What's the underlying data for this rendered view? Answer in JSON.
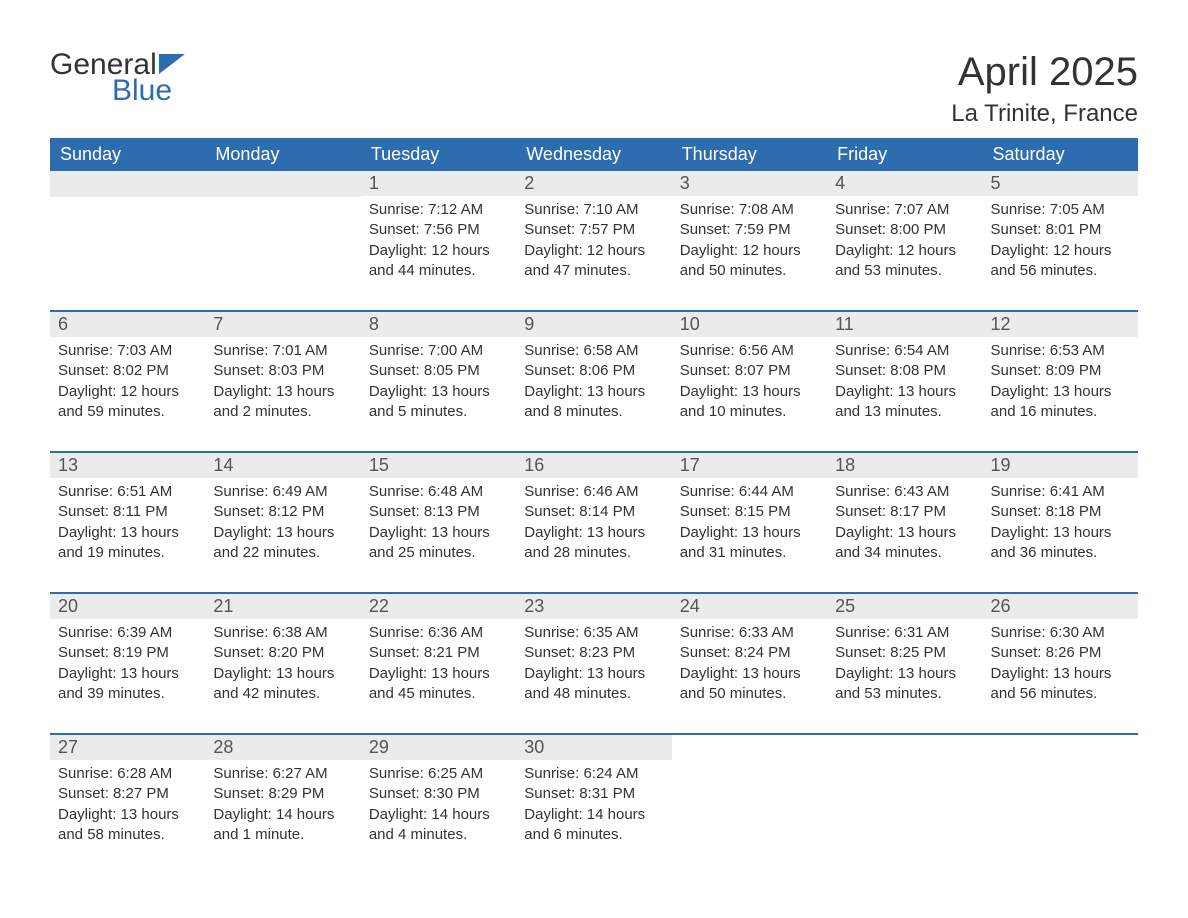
{
  "colors": {
    "accent": "#2e6cb0",
    "header_bg": "#2e6cb0",
    "header_text": "#ffffff",
    "daynum_bg": "#ebebeb",
    "text": "#333333",
    "background": "#ffffff"
  },
  "logo": {
    "line1": "General",
    "line2": "Blue"
  },
  "title": "April 2025",
  "location": "La Trinite, France",
  "weekdays": [
    "Sunday",
    "Monday",
    "Tuesday",
    "Wednesday",
    "Thursday",
    "Friday",
    "Saturday"
  ],
  "calendar": {
    "type": "table",
    "columns": 7,
    "rows": 5,
    "weeks": [
      [
        {
          "blank": true
        },
        {
          "blank": true
        },
        {
          "n": "1",
          "sunrise": "Sunrise: 7:12 AM",
          "sunset": "Sunset: 7:56 PM",
          "d1": "Daylight: 12 hours",
          "d2": "and 44 minutes."
        },
        {
          "n": "2",
          "sunrise": "Sunrise: 7:10 AM",
          "sunset": "Sunset: 7:57 PM",
          "d1": "Daylight: 12 hours",
          "d2": "and 47 minutes."
        },
        {
          "n": "3",
          "sunrise": "Sunrise: 7:08 AM",
          "sunset": "Sunset: 7:59 PM",
          "d1": "Daylight: 12 hours",
          "d2": "and 50 minutes."
        },
        {
          "n": "4",
          "sunrise": "Sunrise: 7:07 AM",
          "sunset": "Sunset: 8:00 PM",
          "d1": "Daylight: 12 hours",
          "d2": "and 53 minutes."
        },
        {
          "n": "5",
          "sunrise": "Sunrise: 7:05 AM",
          "sunset": "Sunset: 8:01 PM",
          "d1": "Daylight: 12 hours",
          "d2": "and 56 minutes."
        }
      ],
      [
        {
          "n": "6",
          "sunrise": "Sunrise: 7:03 AM",
          "sunset": "Sunset: 8:02 PM",
          "d1": "Daylight: 12 hours",
          "d2": "and 59 minutes."
        },
        {
          "n": "7",
          "sunrise": "Sunrise: 7:01 AM",
          "sunset": "Sunset: 8:03 PM",
          "d1": "Daylight: 13 hours",
          "d2": "and 2 minutes."
        },
        {
          "n": "8",
          "sunrise": "Sunrise: 7:00 AM",
          "sunset": "Sunset: 8:05 PM",
          "d1": "Daylight: 13 hours",
          "d2": "and 5 minutes."
        },
        {
          "n": "9",
          "sunrise": "Sunrise: 6:58 AM",
          "sunset": "Sunset: 8:06 PM",
          "d1": "Daylight: 13 hours",
          "d2": "and 8 minutes."
        },
        {
          "n": "10",
          "sunrise": "Sunrise: 6:56 AM",
          "sunset": "Sunset: 8:07 PM",
          "d1": "Daylight: 13 hours",
          "d2": "and 10 minutes."
        },
        {
          "n": "11",
          "sunrise": "Sunrise: 6:54 AM",
          "sunset": "Sunset: 8:08 PM",
          "d1": "Daylight: 13 hours",
          "d2": "and 13 minutes."
        },
        {
          "n": "12",
          "sunrise": "Sunrise: 6:53 AM",
          "sunset": "Sunset: 8:09 PM",
          "d1": "Daylight: 13 hours",
          "d2": "and 16 minutes."
        }
      ],
      [
        {
          "n": "13",
          "sunrise": "Sunrise: 6:51 AM",
          "sunset": "Sunset: 8:11 PM",
          "d1": "Daylight: 13 hours",
          "d2": "and 19 minutes."
        },
        {
          "n": "14",
          "sunrise": "Sunrise: 6:49 AM",
          "sunset": "Sunset: 8:12 PM",
          "d1": "Daylight: 13 hours",
          "d2": "and 22 minutes."
        },
        {
          "n": "15",
          "sunrise": "Sunrise: 6:48 AM",
          "sunset": "Sunset: 8:13 PM",
          "d1": "Daylight: 13 hours",
          "d2": "and 25 minutes."
        },
        {
          "n": "16",
          "sunrise": "Sunrise: 6:46 AM",
          "sunset": "Sunset: 8:14 PM",
          "d1": "Daylight: 13 hours",
          "d2": "and 28 minutes."
        },
        {
          "n": "17",
          "sunrise": "Sunrise: 6:44 AM",
          "sunset": "Sunset: 8:15 PM",
          "d1": "Daylight: 13 hours",
          "d2": "and 31 minutes."
        },
        {
          "n": "18",
          "sunrise": "Sunrise: 6:43 AM",
          "sunset": "Sunset: 8:17 PM",
          "d1": "Daylight: 13 hours",
          "d2": "and 34 minutes."
        },
        {
          "n": "19",
          "sunrise": "Sunrise: 6:41 AM",
          "sunset": "Sunset: 8:18 PM",
          "d1": "Daylight: 13 hours",
          "d2": "and 36 minutes."
        }
      ],
      [
        {
          "n": "20",
          "sunrise": "Sunrise: 6:39 AM",
          "sunset": "Sunset: 8:19 PM",
          "d1": "Daylight: 13 hours",
          "d2": "and 39 minutes."
        },
        {
          "n": "21",
          "sunrise": "Sunrise: 6:38 AM",
          "sunset": "Sunset: 8:20 PM",
          "d1": "Daylight: 13 hours",
          "d2": "and 42 minutes."
        },
        {
          "n": "22",
          "sunrise": "Sunrise: 6:36 AM",
          "sunset": "Sunset: 8:21 PM",
          "d1": "Daylight: 13 hours",
          "d2": "and 45 minutes."
        },
        {
          "n": "23",
          "sunrise": "Sunrise: 6:35 AM",
          "sunset": "Sunset: 8:23 PM",
          "d1": "Daylight: 13 hours",
          "d2": "and 48 minutes."
        },
        {
          "n": "24",
          "sunrise": "Sunrise: 6:33 AM",
          "sunset": "Sunset: 8:24 PM",
          "d1": "Daylight: 13 hours",
          "d2": "and 50 minutes."
        },
        {
          "n": "25",
          "sunrise": "Sunrise: 6:31 AM",
          "sunset": "Sunset: 8:25 PM",
          "d1": "Daylight: 13 hours",
          "d2": "and 53 minutes."
        },
        {
          "n": "26",
          "sunrise": "Sunrise: 6:30 AM",
          "sunset": "Sunset: 8:26 PM",
          "d1": "Daylight: 13 hours",
          "d2": "and 56 minutes."
        }
      ],
      [
        {
          "n": "27",
          "sunrise": "Sunrise: 6:28 AM",
          "sunset": "Sunset: 8:27 PM",
          "d1": "Daylight: 13 hours",
          "d2": "and 58 minutes."
        },
        {
          "n": "28",
          "sunrise": "Sunrise: 6:27 AM",
          "sunset": "Sunset: 8:29 PM",
          "d1": "Daylight: 14 hours",
          "d2": "and 1 minute."
        },
        {
          "n": "29",
          "sunrise": "Sunrise: 6:25 AM",
          "sunset": "Sunset: 8:30 PM",
          "d1": "Daylight: 14 hours",
          "d2": "and 4 minutes."
        },
        {
          "n": "30",
          "sunrise": "Sunrise: 6:24 AM",
          "sunset": "Sunset: 8:31 PM",
          "d1": "Daylight: 14 hours",
          "d2": "and 6 minutes."
        },
        {
          "blank": true,
          "noStrip": true
        },
        {
          "blank": true,
          "noStrip": true
        },
        {
          "blank": true,
          "noStrip": true
        }
      ]
    ]
  }
}
